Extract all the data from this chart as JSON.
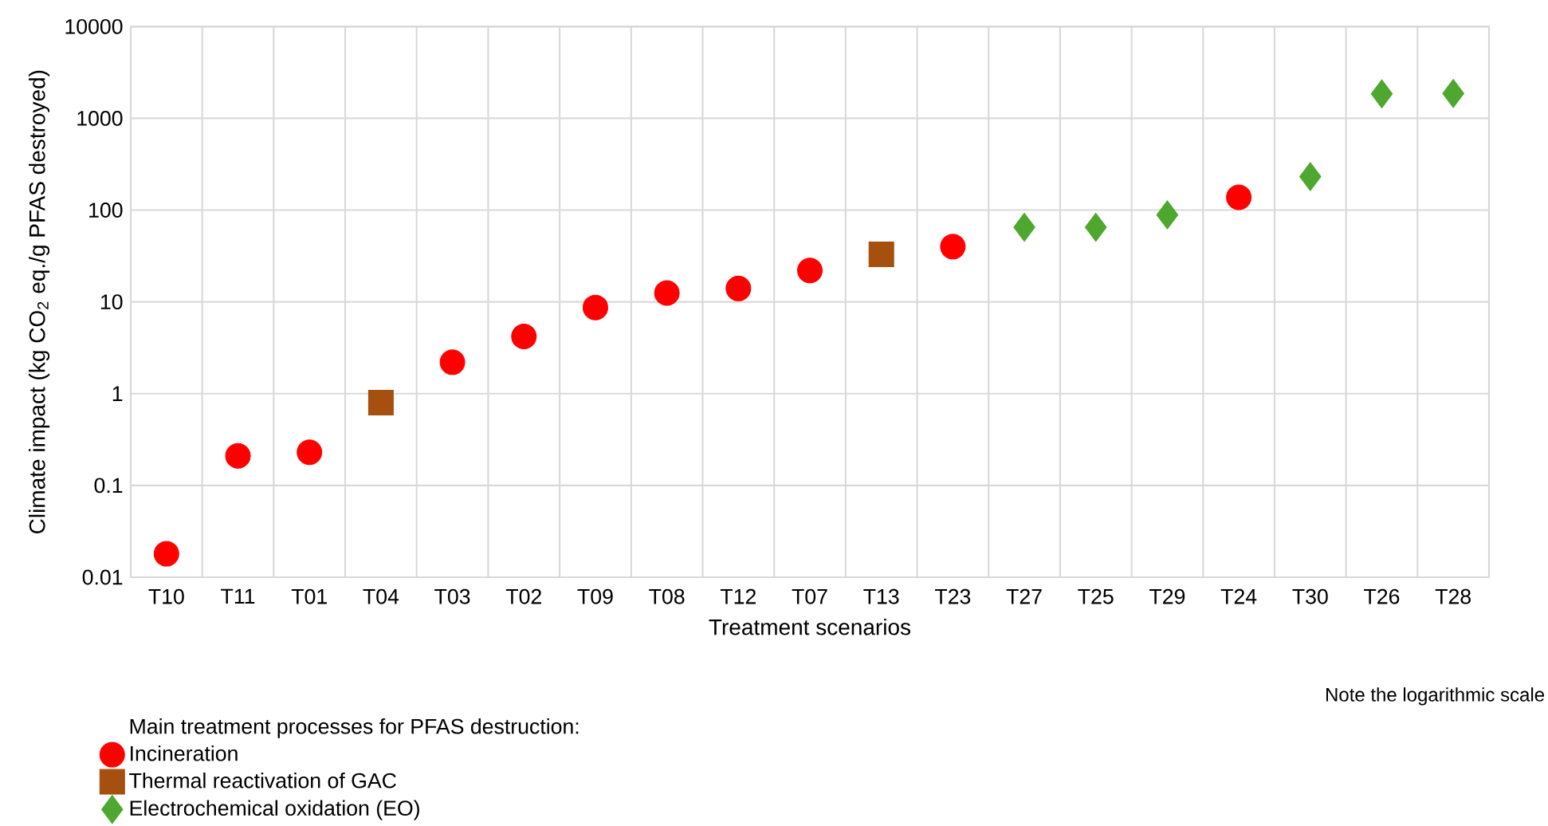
{
  "chart_data": {
    "type": "scatter",
    "xlabel": "Treatment scenarios",
    "ylabel": "Climate impact (kg CO$_{2}$ eq./g PFAS destroyed)",
    "legend_title": "Main treatment processes for PFAS destruction:",
    "annotations": [
      "Note the logarithmic scale"
    ],
    "categories": [
      "T10",
      "T11",
      "T01",
      "T04",
      "T03",
      "T02",
      "T09",
      "T08",
      "T12",
      "T07",
      "T13",
      "T23",
      "T27",
      "T25",
      "T29",
      "T24",
      "T30",
      "T26",
      "T28"
    ],
    "log": true,
    "grid": true,
    "legend": "bottom left",
    "ylim": [
      0.01,
      10000
    ],
    "yticks": [
      0.01,
      0.1,
      1,
      10,
      100,
      1000,
      10000
    ],
    "series": [
      {
        "name": "Incineration",
        "color": "#ff0000",
        "marker": "circle",
        "values": [
          0.018,
          0.21,
          0.23,
          null,
          2.2,
          4.2,
          8.7,
          12.5,
          14,
          22,
          null,
          40,
          null,
          null,
          null,
          138,
          null,
          null,
          null
        ]
      },
      {
        "name": "Thermal reactivation of GAC",
        "color": "#a5500f",
        "marker": "square",
        "values": [
          null,
          null,
          null,
          0.8,
          null,
          null,
          null,
          null,
          null,
          null,
          33,
          null,
          null,
          null,
          null,
          null,
          null,
          null,
          null
        ]
      },
      {
        "name": "Electrochemical oxidation (EO)",
        "color": "#4ea72e",
        "marker": "diamond",
        "values": [
          null,
          null,
          null,
          null,
          null,
          null,
          null,
          null,
          null,
          null,
          null,
          null,
          65,
          65,
          89,
          null,
          232,
          1850,
          1870
        ]
      }
    ]
  }
}
